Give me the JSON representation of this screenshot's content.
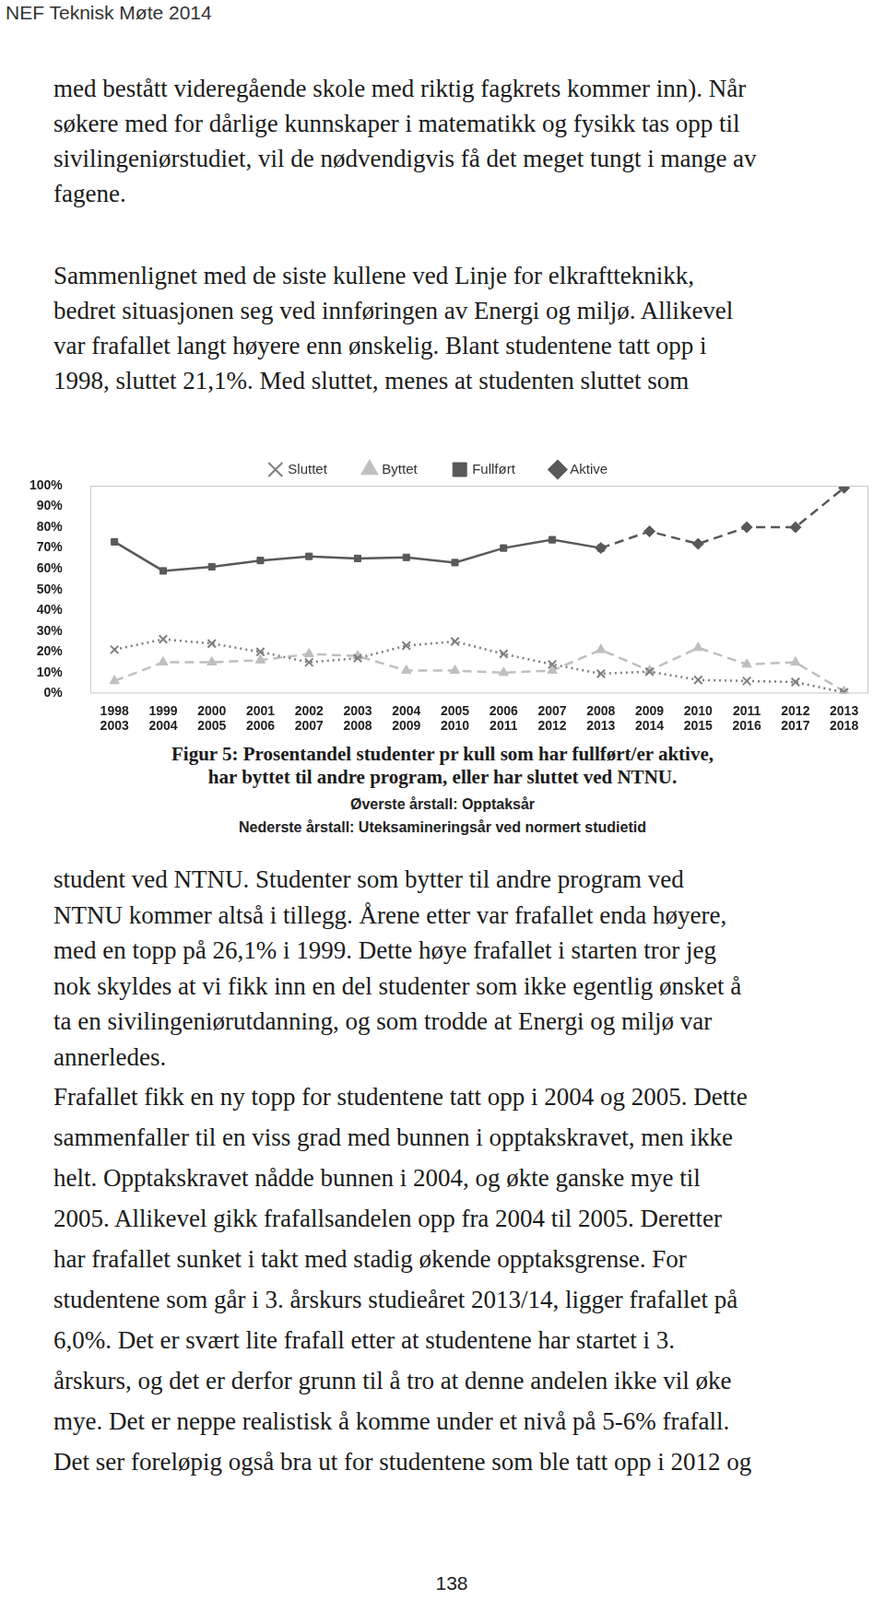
{
  "header": {
    "title": "NEF Teknisk Møte 2014"
  },
  "paragraphs_before": [
    [
      "med bestått videregående skole med riktig fagkrets kommer inn). Når",
      "søkere med for dårlige kunnskaper i matematikk og fysikk tas opp til",
      "sivilingeniørstudiet, vil de nødvendigvis få det meget tungt i mange av",
      "fagene."
    ],
    [
      "Sammenlignet med de siste kullene ved Linje for elkraftteknikk,",
      "bedret situasjonen seg ved innføringen av Energi og miljø. Allikevel",
      "var frafallet langt høyere enn ønskelig. Blant studentene tatt opp i",
      "1998, sluttet 21,1%. Med sluttet, menes at studenten sluttet som"
    ]
  ],
  "chart_data": {
    "type": "line",
    "categories": [
      [
        "1998",
        "2003"
      ],
      [
        "1999",
        "2004"
      ],
      [
        "2000",
        "2005"
      ],
      [
        "2001",
        "2006"
      ],
      [
        "2002",
        "2007"
      ],
      [
        "2003",
        "2008"
      ],
      [
        "2004",
        "2009"
      ],
      [
        "2005",
        "2010"
      ],
      [
        "2006",
        "2011"
      ],
      [
        "2007",
        "2012"
      ],
      [
        "2008",
        "2013"
      ],
      [
        "2009",
        "2014"
      ],
      [
        "2010",
        "2015"
      ],
      [
        "2011",
        "2016"
      ],
      [
        "2012",
        "2017"
      ],
      [
        "2013",
        "2018"
      ]
    ],
    "series": [
      {
        "name": "Aktive",
        "color": "#595959",
        "marker": "diamond",
        "line_style": "dashed",
        "values": [
          null,
          null,
          null,
          null,
          null,
          null,
          null,
          null,
          null,
          null,
          70,
          78,
          72,
          80,
          80,
          99
        ]
      },
      {
        "name": "Fullført",
        "color": "#595959",
        "marker": "square",
        "line_style": "solid",
        "values": [
          73,
          59,
          61,
          64,
          66,
          65,
          65.5,
          63,
          70,
          74,
          70,
          null,
          null,
          null,
          null,
          null
        ]
      },
      {
        "name": "Byttet",
        "color": "#bfbfbf",
        "marker": "triangle",
        "line_style": "dashed",
        "values": [
          6,
          15,
          15,
          16,
          19,
          18,
          11,
          11,
          10,
          11,
          21,
          11,
          22,
          14,
          15,
          1
        ]
      },
      {
        "name": "Sluttet",
        "color": "#7f7f7f",
        "marker": "x",
        "line_style": "dotted",
        "values": [
          21.1,
          26.1,
          24,
          20,
          15,
          17,
          23,
          25,
          19,
          14,
          9.5,
          10.5,
          6.5,
          6,
          5.5,
          0.5
        ]
      }
    ],
    "ylim": [
      0,
      100
    ],
    "yticks": [
      {
        "value": 0,
        "label": "0%"
      },
      {
        "value": 10,
        "label": "10%"
      },
      {
        "value": 20,
        "label": "20%"
      },
      {
        "value": 30,
        "label": "30%"
      },
      {
        "value": 40,
        "label": "40%"
      },
      {
        "value": 50,
        "label": "50%"
      },
      {
        "value": 60,
        "label": "60%"
      },
      {
        "value": 70,
        "label": "70%"
      },
      {
        "value": 80,
        "label": "80%"
      },
      {
        "value": 90,
        "label": "90%"
      },
      {
        "value": 100,
        "label": "100%"
      }
    ],
    "grid": false,
    "legend": "top"
  },
  "caption": {
    "title_lines": [
      "Figur 5: Prosentandel studenter pr kull som har fullført/er aktive,",
      "har byttet til andre program, eller har sluttet ved NTNU."
    ],
    "notes": [
      "Øverste årstall: Opptaksår",
      "Nederste årstall: Uteksamineringsår ved normert studietid"
    ]
  },
  "paragraphs_after": [
    [
      "student ved NTNU. Studenter som bytter til andre program ved",
      "NTNU kommer altså i tillegg. Årene etter var frafallet enda høyere,",
      "med en topp på 26,1% i 1999. Dette høye frafallet i starten tror jeg",
      "nok skyldes at vi fikk inn en del studenter som ikke egentlig ønsket å",
      "ta en sivilingeniørutdanning, og som trodde at Energi og miljø var",
      "annerledes."
    ],
    [
      "Frafallet fikk en ny topp for studentene tatt opp i 2004 og 2005. Dette",
      "sammenfaller til en viss grad med bunnen i opptakskravet, men ikke",
      "helt. Opptakskravet nådde bunnen i 2004, og økte ganske mye til",
      "2005. Allikevel gikk frafallsandelen opp fra 2004 til 2005. Deretter",
      "har frafallet sunket i takt med stadig økende opptaksgrense. For",
      "studentene som går i 3. årskurs studieåret 2013/14, ligger frafallet på",
      "6,0%. Det er svært lite frafall etter at studentene har startet i 3.",
      "årskurs, og det er derfor grunn til å tro at denne andelen ikke vil øke",
      "mye. Det er neppe realistisk å komme under et nivå på 5-6% frafall.",
      "Det ser foreløpig også bra ut for studentene som ble tatt opp i 2012 og"
    ]
  ],
  "page_number": 138
}
